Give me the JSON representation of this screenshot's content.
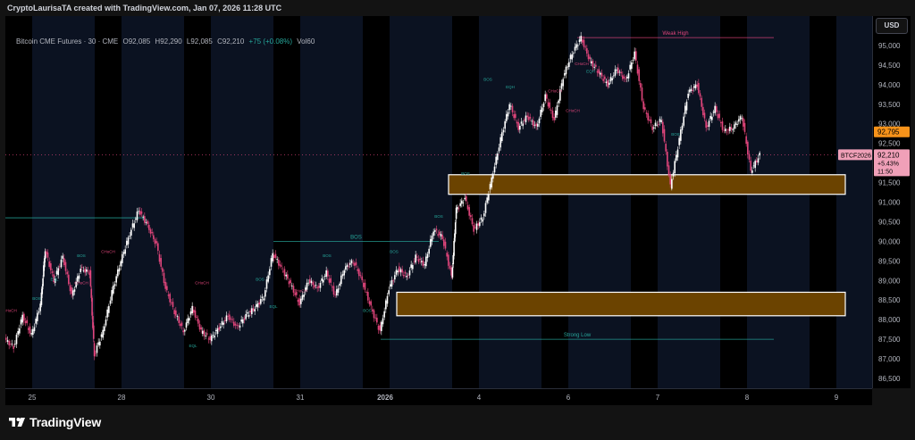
{
  "header": {
    "attribution": "CryptoLaurisaTA created with TradingView.com, Jan 07, 2026 11:28 UTC"
  },
  "symbol_line": {
    "name": "Bitcoin CME Futures · 30 · CME",
    "open": "O92,085",
    "high": "H92,290",
    "low": "L92,085",
    "close": "C92,210",
    "change": "+75 (+0.08%)",
    "volume": "Vol60"
  },
  "price_axis": {
    "currency": "USD"
  },
  "badges": {
    "ticker": "BTCF2026",
    "high_marker": "92,795",
    "last_price": "92,210",
    "last_change": "+5.43%",
    "countdown": "11:50"
  },
  "logo": {
    "text": "TradingView"
  },
  "colors": {
    "up_candle": "#ffffff",
    "down_candle": "#e0457b",
    "zone_fill": "#6b4300",
    "zone_border": "#ffffff",
    "teal_line": "#26a69a",
    "red_line": "#e0457b",
    "session_band": "#0b1221",
    "last_price_badge": "#f0a0b8",
    "high_badge": "#f7931a"
  },
  "chart_data": {
    "type": "candlestick",
    "ylim": [
      86250,
      95750
    ],
    "xlim": [
      0,
      14
    ],
    "y_ticks": [
      "86,500",
      "87,000",
      "87,500",
      "88,000",
      "88,500",
      "89,000",
      "89,500",
      "90,000",
      "90,500",
      "91,000",
      "91,500",
      "92,000",
      "92,500",
      "93,000",
      "93,500",
      "94,000",
      "94,500",
      "95,000"
    ],
    "y_tick_values": [
      86500,
      87000,
      87500,
      88000,
      88500,
      89000,
      89500,
      90000,
      90500,
      91000,
      91500,
      92000,
      92500,
      93000,
      93500,
      94000,
      94500,
      95000
    ],
    "x_ticks": [
      {
        "label": "25",
        "x": 0.3
      },
      {
        "label": "28",
        "x": 1.3
      },
      {
        "label": "30",
        "x": 2.3
      },
      {
        "label": "31",
        "x": 3.3
      },
      {
        "label": "2026",
        "x": 4.25
      },
      {
        "label": "4",
        "x": 5.3
      },
      {
        "label": "6",
        "x": 6.3
      },
      {
        "label": "7",
        "x": 7.3
      },
      {
        "label": "8",
        "x": 8.3
      },
      {
        "label": "9",
        "x": 9.3
      }
    ],
    "price_path": [
      [
        0.0,
        87500
      ],
      [
        0.1,
        87300
      ],
      [
        0.2,
        88100
      ],
      [
        0.3,
        87600
      ],
      [
        0.4,
        88400
      ],
      [
        0.45,
        89800
      ],
      [
        0.55,
        89000
      ],
      [
        0.65,
        89600
      ],
      [
        0.75,
        88600
      ],
      [
        0.85,
        89300
      ],
      [
        0.95,
        89200
      ],
      [
        1.0,
        87100
      ],
      [
        1.1,
        87700
      ],
      [
        1.2,
        88700
      ],
      [
        1.3,
        89500
      ],
      [
        1.4,
        90200
      ],
      [
        1.5,
        90800
      ],
      [
        1.6,
        90400
      ],
      [
        1.7,
        89900
      ],
      [
        1.8,
        88800
      ],
      [
        1.9,
        88200
      ],
      [
        2.0,
        87700
      ],
      [
        2.1,
        88300
      ],
      [
        2.2,
        87700
      ],
      [
        2.3,
        87500
      ],
      [
        2.4,
        87800
      ],
      [
        2.5,
        88100
      ],
      [
        2.6,
        87800
      ],
      [
        2.7,
        88100
      ],
      [
        2.8,
        88300
      ],
      [
        2.9,
        88600
      ],
      [
        3.0,
        89700
      ],
      [
        3.1,
        89300
      ],
      [
        3.2,
        88900
      ],
      [
        3.3,
        88400
      ],
      [
        3.4,
        89000
      ],
      [
        3.5,
        88800
      ],
      [
        3.6,
        89200
      ],
      [
        3.7,
        88600
      ],
      [
        3.8,
        89300
      ],
      [
        3.9,
        89500
      ],
      [
        4.0,
        89000
      ],
      [
        4.1,
        88300
      ],
      [
        4.2,
        87700
      ],
      [
        4.3,
        88800
      ],
      [
        4.4,
        89300
      ],
      [
        4.5,
        89100
      ],
      [
        4.6,
        89600
      ],
      [
        4.7,
        89400
      ],
      [
        4.8,
        90300
      ],
      [
        4.9,
        90100
      ],
      [
        5.0,
        89100
      ],
      [
        5.05,
        90800
      ],
      [
        5.15,
        91100
      ],
      [
        5.25,
        90300
      ],
      [
        5.35,
        90600
      ],
      [
        5.45,
        91600
      ],
      [
        5.55,
        92600
      ],
      [
        5.65,
        93500
      ],
      [
        5.75,
        92900
      ],
      [
        5.85,
        93200
      ],
      [
        5.95,
        92900
      ],
      [
        6.05,
        93700
      ],
      [
        6.15,
        93100
      ],
      [
        6.25,
        94200
      ],
      [
        6.35,
        94800
      ],
      [
        6.45,
        95200
      ],
      [
        6.55,
        94600
      ],
      [
        6.65,
        94300
      ],
      [
        6.75,
        94000
      ],
      [
        6.85,
        94400
      ],
      [
        6.95,
        94100
      ],
      [
        7.05,
        94800
      ],
      [
        7.15,
        93400
      ],
      [
        7.25,
        92900
      ],
      [
        7.35,
        93100
      ],
      [
        7.45,
        91400
      ],
      [
        7.55,
        92600
      ],
      [
        7.65,
        93800
      ],
      [
        7.75,
        94000
      ],
      [
        7.85,
        92900
      ],
      [
        7.95,
        93400
      ],
      [
        8.05,
        92800
      ],
      [
        8.15,
        92900
      ],
      [
        8.25,
        93200
      ],
      [
        8.35,
        91800
      ],
      [
        8.45,
        92200
      ]
    ],
    "zones": [
      {
        "name": "upper-demand-zone",
        "x_from": 4.96,
        "x_to": 9.4,
        "y_high": 91700,
        "y_low": 91200
      },
      {
        "name": "lower-demand-zone",
        "x_from": 4.38,
        "x_to": 9.4,
        "y_high": 88700,
        "y_low": 88100
      }
    ],
    "levels": [
      {
        "name": "weak-high-line",
        "label": "Weak High",
        "x_from": 6.4,
        "x_to": 8.6,
        "y": 95200,
        "color": "#e0457b"
      },
      {
        "name": "strong-low-line",
        "label": "Strong Low",
        "x_from": 4.2,
        "x_to": 8.6,
        "y": 87500,
        "color": "#26a69a"
      },
      {
        "name": "left-high-line",
        "label": "",
        "x_from": 0.0,
        "x_to": 1.55,
        "y": 90600,
        "color": "#26a69a"
      },
      {
        "name": "bos-line",
        "label": "BOS",
        "x_from": 3.0,
        "x_to": 4.85,
        "y": 90000,
        "color": "#26a69a"
      },
      {
        "name": "dotted-last-price",
        "label": "",
        "x_from": 0.0,
        "x_to": 14,
        "y": 92210,
        "color": "#e0457b"
      }
    ],
    "annotations": [
      {
        "text": "BOS",
        "x": 0.35,
        "y": 88500
      },
      {
        "text": "CHoCH",
        "x": 0.05,
        "y": 88200
      },
      {
        "text": "EQL",
        "x": 0.55,
        "y": 89000
      },
      {
        "text": "BOS",
        "x": 0.85,
        "y": 89600
      },
      {
        "text": "CHoCH",
        "x": 1.15,
        "y": 89700
      },
      {
        "text": "CHoCH",
        "x": 0.85,
        "y": 88900
      },
      {
        "text": "CHoCH",
        "x": 2.2,
        "y": 88900
      },
      {
        "text": "EQL",
        "x": 2.1,
        "y": 87300
      },
      {
        "text": "BOS",
        "x": 2.85,
        "y": 89000
      },
      {
        "text": "EQL",
        "x": 3.0,
        "y": 88300
      },
      {
        "text": "CHoCH",
        "x": 3.3,
        "y": 88700
      },
      {
        "text": "BOS",
        "x": 3.6,
        "y": 89600
      },
      {
        "text": "BOS",
        "x": 4.05,
        "y": 88200
      },
      {
        "text": "BOS",
        "x": 4.35,
        "y": 89700
      },
      {
        "text": "BOS",
        "x": 4.85,
        "y": 90600
      },
      {
        "text": "BOS",
        "x": 5.15,
        "y": 91700
      },
      {
        "text": "BOS",
        "x": 5.4,
        "y": 94100
      },
      {
        "text": "EQH",
        "x": 5.65,
        "y": 93900
      },
      {
        "text": "CHoCH",
        "x": 6.45,
        "y": 94500
      },
      {
        "text": "EQH",
        "x": 6.55,
        "y": 94300
      },
      {
        "text": "CHoCH",
        "x": 6.15,
        "y": 93800
      },
      {
        "text": "CHoCH",
        "x": 6.35,
        "y": 93300
      },
      {
        "text": "BOS",
        "x": 7.5,
        "y": 92700
      }
    ]
  }
}
